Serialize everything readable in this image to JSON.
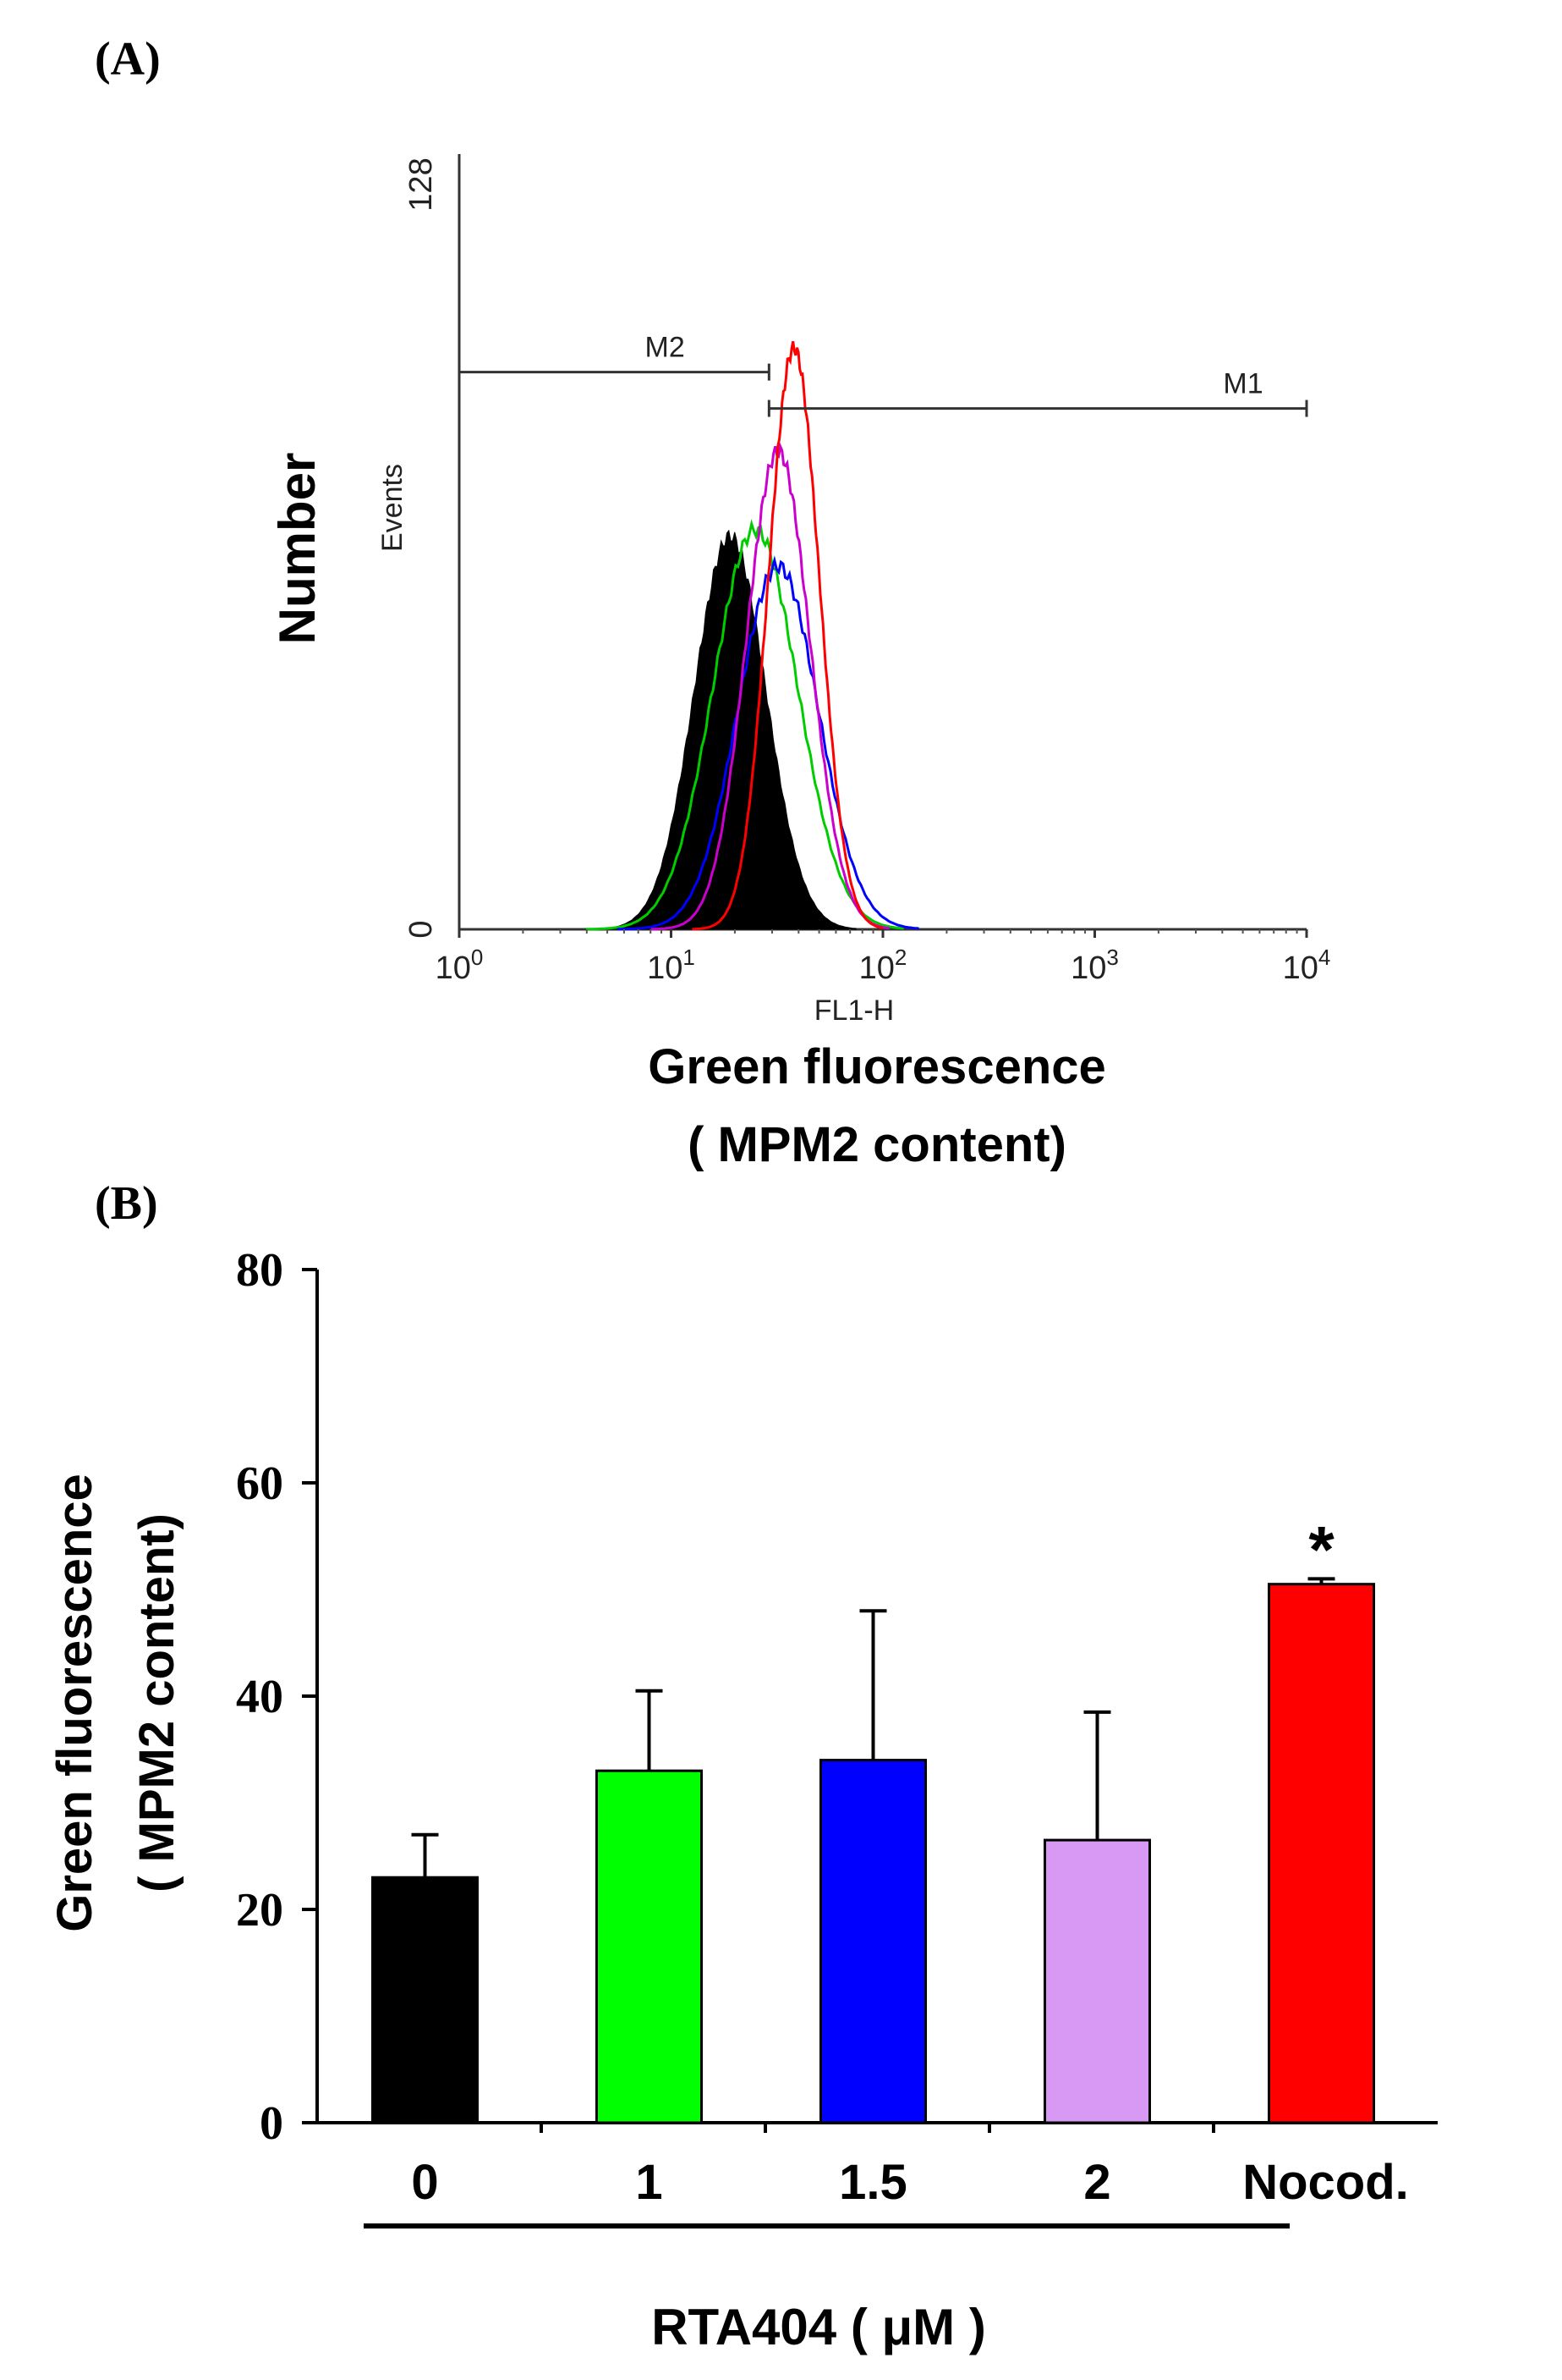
{
  "panels": {
    "a_label": "(A)",
    "b_label": "(B)"
  },
  "chart_data": [
    {
      "type": "histogram",
      "panel": "A",
      "title": "",
      "ylabel_outer": "Number",
      "ylabel_inner": "Events",
      "xlabel_inner": "FL1-H",
      "xlabel_outer_line1": "Green fluorescence",
      "xlabel_outer_line2": "( MPM2 content)",
      "x_scale": "log",
      "xlim": [
        1,
        10000
      ],
      "ylim": [
        0,
        128
      ],
      "y_tick_labels": [
        "0",
        "128"
      ],
      "x_ticks": [
        {
          "base": "10",
          "exp": "0"
        },
        {
          "base": "10",
          "exp": "1"
        },
        {
          "base": "10",
          "exp": "2"
        },
        {
          "base": "10",
          "exp": "3"
        },
        {
          "base": "10",
          "exp": "4"
        }
      ],
      "markers": [
        {
          "name": "M2",
          "from": 1,
          "to": 29,
          "level": 92
        },
        {
          "name": "M1",
          "from": 29,
          "to": 10000,
          "level": 86
        }
      ],
      "series": [
        {
          "name": "0 μM",
          "color": "#000000",
          "filled": true,
          "mode": 19,
          "peak": 65,
          "spread": 0.17
        },
        {
          "name": "1 μM",
          "color": "#00cc00",
          "filled": false,
          "mode": 25,
          "peak": 66,
          "spread": 0.2
        },
        {
          "name": "1.5 μM",
          "color": "#0000ff",
          "filled": false,
          "mode": 32,
          "peak": 60,
          "spread": 0.19
        },
        {
          "name": "2 μM",
          "color": "#cc00cc",
          "filled": false,
          "mode": 32,
          "peak": 79,
          "spread": 0.15
        },
        {
          "name": "Nocod.",
          "color": "#ff0000",
          "filled": false,
          "mode": 38,
          "peak": 96,
          "spread": 0.12
        }
      ]
    },
    {
      "type": "bar",
      "panel": "B",
      "title": "",
      "ylabel_line1": "Green fluorescence",
      "ylabel_line2": "( MPM2 content)",
      "xlabel": "RTA404 ( μM )",
      "categories": [
        "0",
        "1",
        "1.5",
        "2",
        "Nocod."
      ],
      "values": [
        23,
        33,
        34,
        26.5,
        50.5
      ],
      "errors": [
        4,
        7.5,
        14,
        12,
        0.5
      ],
      "colors": [
        "#000000",
        "#00ff00",
        "#0000ff",
        "#d899f5",
        "#ff0000"
      ],
      "significance": [
        "",
        "",
        "",
        "",
        "*"
      ],
      "ylim": [
        0,
        80
      ],
      "yticks": [
        "0",
        "20",
        "40",
        "60",
        "80"
      ]
    }
  ]
}
